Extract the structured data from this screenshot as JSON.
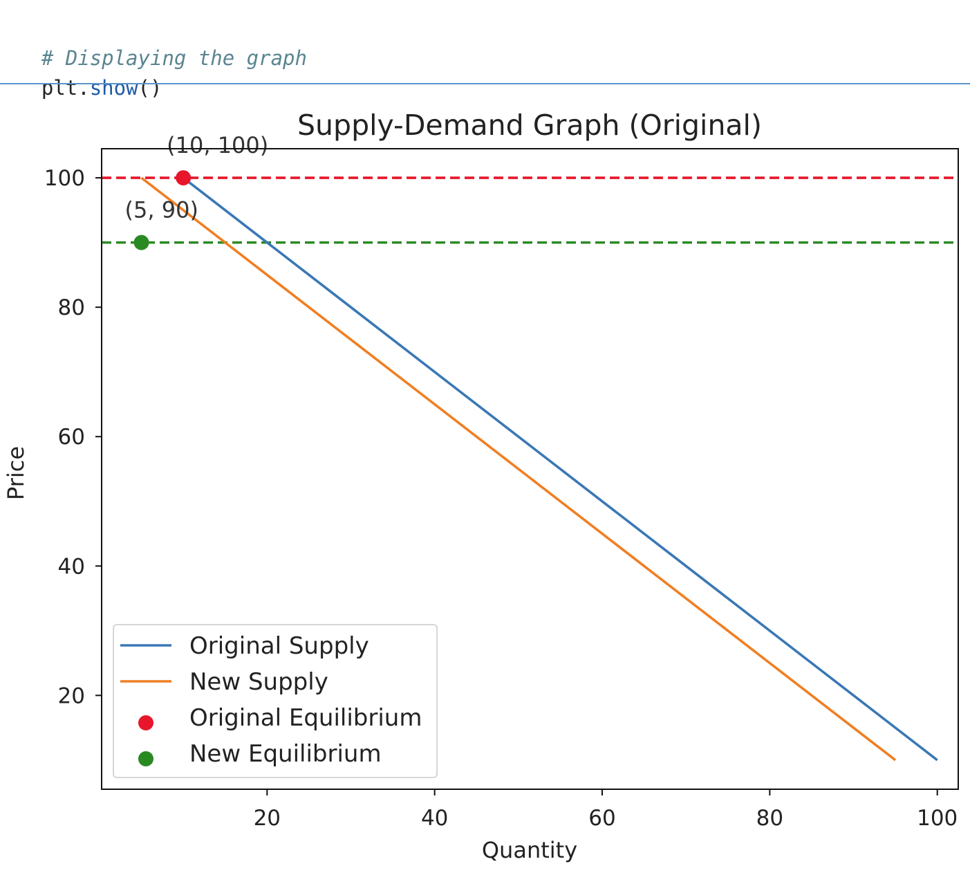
{
  "code": {
    "comment": "# Displaying the graph",
    "line2_ident": "plt",
    "line2_dot": ".",
    "line2_method": "show",
    "line2_parens": "()"
  },
  "chart_data": {
    "type": "line",
    "title": "Supply-Demand Graph (Original)",
    "xlabel": "Quantity",
    "ylabel": "Price",
    "xlim": [
      0.25,
      102.5
    ],
    "ylim": [
      5.5,
      104.5
    ],
    "xticks": [
      20,
      40,
      60,
      80,
      100
    ],
    "yticks": [
      20,
      40,
      60,
      80,
      100
    ],
    "grid": false,
    "legend_position": "lower-left",
    "series": [
      {
        "name": "Original Supply",
        "kind": "line",
        "color": "#3a78b5",
        "x": [
          10,
          100
        ],
        "y": [
          100,
          10
        ]
      },
      {
        "name": "New Supply",
        "kind": "line",
        "color": "#f07f23",
        "x": [
          5,
          95
        ],
        "y": [
          100,
          10
        ]
      },
      {
        "name": "Original Equilibrium",
        "kind": "scatter",
        "color": "#e8162b",
        "x": [
          10
        ],
        "y": [
          100
        ]
      },
      {
        "name": "New Equilibrium",
        "kind": "scatter",
        "color": "#2a8a22",
        "x": [
          5
        ],
        "y": [
          90
        ]
      }
    ],
    "hlines": [
      {
        "y": 100,
        "color": "#e8162b",
        "style": "dashed"
      },
      {
        "y": 90,
        "color": "#2a8a22",
        "style": "dashed"
      }
    ],
    "annotations": [
      {
        "text": "(10, 100)",
        "x": 10,
        "y": 100
      },
      {
        "text": "(5, 90)",
        "x": 5,
        "y": 90
      }
    ]
  }
}
